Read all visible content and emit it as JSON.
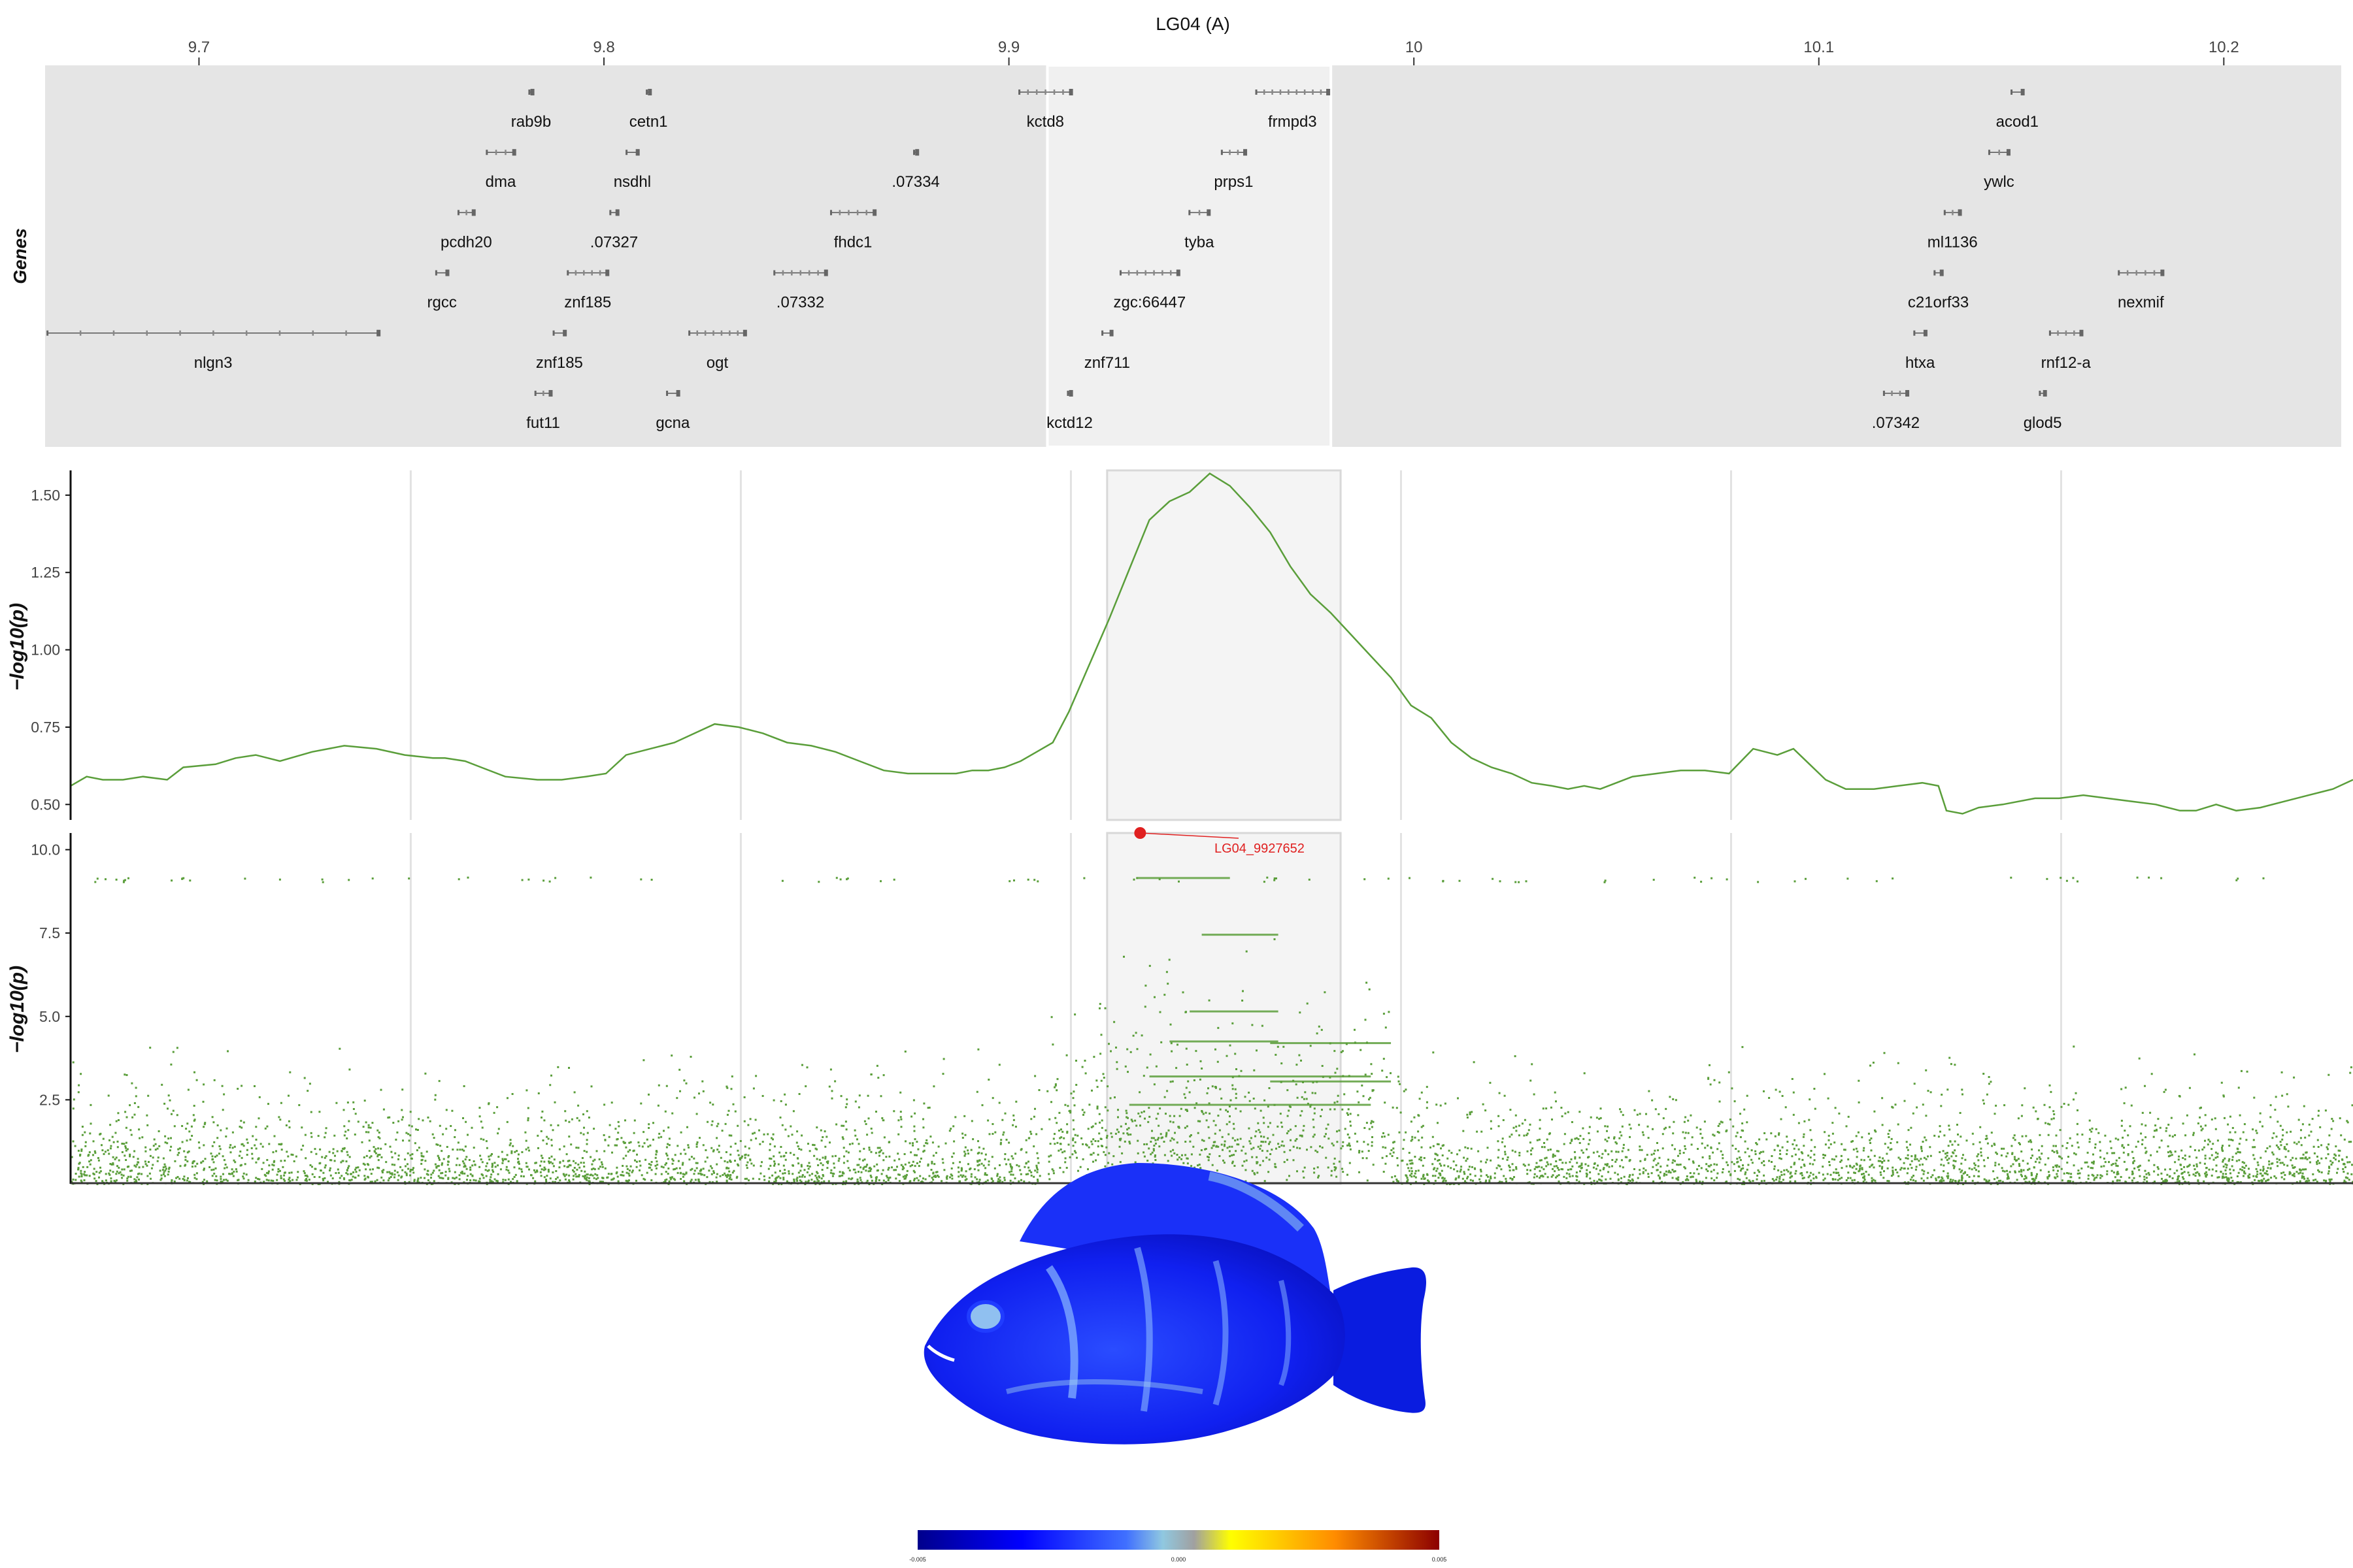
{
  "chart_data": [
    {
      "type": "gene-track",
      "title": "LG04 (A)",
      "ylabel": "Genes",
      "xlim": [
        9.662,
        10.229
      ],
      "x_ticks": [
        9.7,
        9.8,
        9.9,
        10.0,
        10.1,
        10.2
      ],
      "x_tick_labels": [
        "9.7",
        "9.8",
        "9.9",
        "10",
        "10.1",
        "10.2"
      ],
      "highlight": [
        9.9095,
        9.9795
      ],
      "genes": [
        {
          "name": "rab9b",
          "row": 1,
          "start": 9.7815,
          "end": 9.7825
        },
        {
          "name": "cetn1",
          "row": 1,
          "start": 9.8105,
          "end": 9.8115
        },
        {
          "name": "kctd8",
          "row": 1,
          "start": 9.9025,
          "end": 9.9155
        },
        {
          "name": "frmpd3",
          "row": 1,
          "start": 9.961,
          "end": 9.979
        },
        {
          "name": "acod1",
          "row": 1,
          "start": 10.1475,
          "end": 10.1505
        },
        {
          "name": "dma",
          "row": 2,
          "start": 9.771,
          "end": 9.778
        },
        {
          "name": "nsdhl",
          "row": 2,
          "start": 9.8055,
          "end": 9.8085
        },
        {
          "name": ".07334",
          "row": 2,
          "start": 9.8765,
          "end": 9.8775
        },
        {
          "name": "prps1",
          "row": 2,
          "start": 9.9525,
          "end": 9.9585
        },
        {
          "name": "ywlc",
          "row": 2,
          "start": 10.142,
          "end": 10.147
        },
        {
          "name": "pcdh20",
          "row": 3,
          "start": 9.764,
          "end": 9.768
        },
        {
          "name": ".07327",
          "row": 3,
          "start": 9.8015,
          "end": 9.8035
        },
        {
          "name": "fhdc1",
          "row": 3,
          "start": 9.856,
          "end": 9.867
        },
        {
          "name": "tyba",
          "row": 3,
          "start": 9.9445,
          "end": 9.9495
        },
        {
          "name": "ml1136",
          "row": 3,
          "start": 10.131,
          "end": 10.135
        },
        {
          "name": "rgcc",
          "row": 4,
          "start": 9.7585,
          "end": 9.7615
        },
        {
          "name": "znf185",
          "row": 4,
          "start": 9.791,
          "end": 9.801
        },
        {
          "name": ".07332",
          "row": 4,
          "start": 9.842,
          "end": 9.855
        },
        {
          "name": "zgc:66447",
          "row": 4,
          "start": 9.9275,
          "end": 9.942
        },
        {
          "name": "c21orf33",
          "row": 4,
          "start": 10.1285,
          "end": 10.1305
        },
        {
          "name": "nexmif",
          "row": 4,
          "start": 10.174,
          "end": 10.185
        },
        {
          "name": "nlgn3",
          "row": 5,
          "start": 9.6625,
          "end": 9.7445
        },
        {
          "name": "znf185",
          "row": 5,
          "start": 9.7875,
          "end": 9.7905
        },
        {
          "name": "ogt",
          "row": 5,
          "start": 9.821,
          "end": 9.835
        },
        {
          "name": "znf711",
          "row": 5,
          "start": 9.923,
          "end": 9.9255
        },
        {
          "name": "htxa",
          "row": 5,
          "start": 10.1235,
          "end": 10.1265
        },
        {
          "name": "rnf12-a",
          "row": 5,
          "start": 10.157,
          "end": 10.165
        },
        {
          "name": "fut11",
          "row": 6,
          "start": 9.783,
          "end": 9.787
        },
        {
          "name": "gcna",
          "row": 6,
          "start": 9.8155,
          "end": 9.8185
        },
        {
          "name": "kctd12",
          "row": 6,
          "start": 9.9145,
          "end": 9.9155
        },
        {
          "name": ".07342",
          "row": 6,
          "start": 10.116,
          "end": 10.122
        },
        {
          "name": "glod5",
          "row": 6,
          "start": 10.1545,
          "end": 10.156
        }
      ]
    },
    {
      "type": "line",
      "ylabel": "−log10(p)",
      "xlim": [
        9.662,
        10.229
      ],
      "ylim": [
        0.45,
        1.58
      ],
      "y_ticks": [
        0.5,
        0.75,
        1.0,
        1.25,
        1.5
      ],
      "y_tick_labels": [
        "0.50",
        "0.75",
        "1.00",
        "1.25",
        "1.50"
      ],
      "highlight": [
        9.9195,
        9.9775
      ],
      "line_color": "#5a9e3a",
      "x": [
        9.662,
        9.666,
        9.67,
        9.675,
        9.68,
        9.686,
        9.69,
        9.698,
        9.703,
        9.708,
        9.714,
        9.722,
        9.73,
        9.738,
        9.745,
        9.752,
        9.755,
        9.76,
        9.764,
        9.77,
        9.778,
        9.784,
        9.79,
        9.795,
        9.8,
        9.806,
        9.812,
        9.817,
        9.822,
        9.828,
        9.834,
        9.84,
        9.846,
        9.852,
        9.858,
        9.864,
        9.87,
        9.876,
        9.882,
        9.886,
        9.89,
        9.894,
        9.898,
        9.902,
        9.906,
        9.91,
        9.915,
        9.92,
        9.925,
        9.93,
        9.935,
        9.94,
        9.945,
        9.95,
        9.955,
        9.96,
        9.965,
        9.97,
        9.975,
        9.98,
        9.985,
        9.99,
        9.995,
        10.0,
        10.005,
        10.01,
        10.015,
        10.02,
        10.025,
        10.03,
        10.034,
        10.038,
        10.042,
        10.046,
        10.05,
        10.056,
        10.062,
        10.068,
        10.074,
        10.08,
        10.086,
        10.09,
        10.094,
        10.098,
        10.103,
        10.11,
        10.116,
        10.122,
        10.126,
        10.128,
        10.132,
        10.136,
        10.142,
        10.15,
        10.156,
        10.162,
        10.168,
        10.174,
        10.18,
        10.186,
        10.19,
        10.195,
        10.2,
        10.206,
        10.212,
        10.218,
        10.224,
        10.229
      ],
      "y": [
        0.56,
        0.59,
        0.58,
        0.58,
        0.59,
        0.58,
        0.62,
        0.63,
        0.65,
        0.66,
        0.64,
        0.67,
        0.69,
        0.68,
        0.66,
        0.65,
        0.65,
        0.64,
        0.62,
        0.59,
        0.58,
        0.58,
        0.59,
        0.6,
        0.66,
        0.68,
        0.7,
        0.73,
        0.76,
        0.75,
        0.73,
        0.7,
        0.69,
        0.67,
        0.64,
        0.61,
        0.6,
        0.6,
        0.6,
        0.61,
        0.61,
        0.62,
        0.64,
        0.67,
        0.7,
        0.8,
        0.95,
        1.1,
        1.26,
        1.42,
        1.48,
        1.51,
        1.57,
        1.53,
        1.46,
        1.38,
        1.27,
        1.18,
        1.12,
        1.05,
        0.98,
        0.91,
        0.82,
        0.78,
        0.7,
        0.65,
        0.62,
        0.6,
        0.57,
        0.56,
        0.55,
        0.56,
        0.55,
        0.57,
        0.59,
        0.6,
        0.61,
        0.61,
        0.6,
        0.68,
        0.66,
        0.68,
        0.63,
        0.58,
        0.55,
        0.55,
        0.56,
        0.57,
        0.56,
        0.48,
        0.47,
        0.49,
        0.5,
        0.52,
        0.52,
        0.53,
        0.52,
        0.51,
        0.5,
        0.48,
        0.48,
        0.5,
        0.48,
        0.49,
        0.51,
        0.53,
        0.55,
        0.58
      ]
    },
    {
      "type": "scatter",
      "ylabel": "−log10(p)",
      "xlim": [
        9.662,
        10.229
      ],
      "ylim": [
        0,
        10.5
      ],
      "y_ticks": [
        2.5,
        5.0,
        7.5,
        10.0
      ],
      "y_tick_labels": [
        "2.5",
        "5.0",
        "7.5",
        "10.0"
      ],
      "highlight": [
        9.9195,
        9.9775
      ],
      "point_color": "#5a9e3a",
      "top_snp": {
        "label": "LG04_9927652",
        "x": 9.9277,
        "y": 10.5,
        "color": "#e02020"
      }
    }
  ],
  "colorbar": {
    "min_label": "-0.005",
    "mid_label": "0.000",
    "max_label": "0.005"
  }
}
